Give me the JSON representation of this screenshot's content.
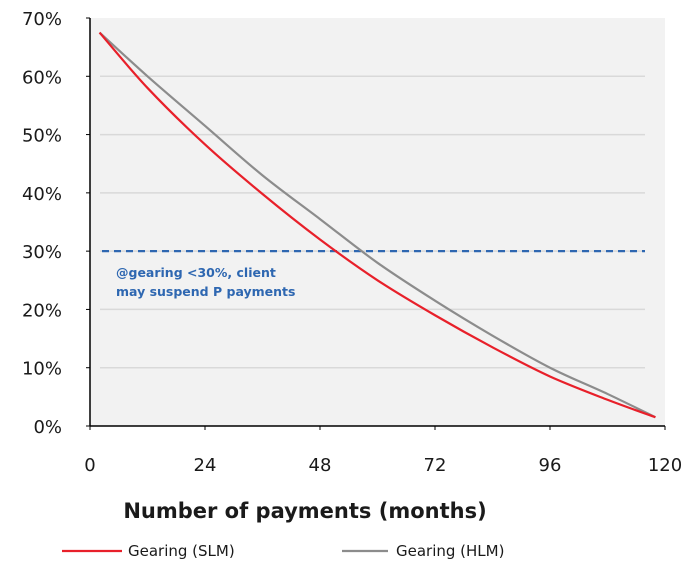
{
  "chart_data": {
    "type": "line",
    "title": "",
    "xlabel": "Number of payments (months)",
    "ylabel": "",
    "xlim": [
      0,
      120
    ],
    "ylim": [
      0,
      70
    ],
    "x_ticks": [
      0,
      24,
      48,
      72,
      96,
      120
    ],
    "x_tick_labels": [
      "0",
      "24",
      "48",
      "72",
      "96",
      "120"
    ],
    "y_ticks": [
      0,
      10,
      20,
      30,
      40,
      50,
      60,
      70
    ],
    "y_tick_labels": [
      "0%",
      "10%",
      "20%",
      "30%",
      "40%",
      "50%",
      "60%",
      "70%"
    ],
    "grid": "horizontal",
    "legend_position": "bottom",
    "colors": {
      "plot_background": "#f2f2f2",
      "grid": "#d9d9d9",
      "reference": "#2e67b1"
    },
    "series": [
      {
        "name": "Gearing (SLM)",
        "color": "#e8202a",
        "x": [
          2,
          12,
          24,
          36,
          48,
          60,
          72,
          84,
          96,
          108,
          118
        ],
        "y": [
          67.5,
          58,
          48.3,
          39.8,
          32,
          25,
          19,
          13.5,
          8.5,
          4.5,
          1.5
        ]
      },
      {
        "name": "Gearing (HLM)",
        "color": "#8c8c8c",
        "x": [
          2,
          12,
          24,
          36,
          48,
          60,
          72,
          84,
          96,
          108,
          118
        ],
        "y": [
          67.5,
          60,
          51.5,
          43,
          35.5,
          28,
          21.5,
          15.5,
          10,
          5.5,
          1.5
        ]
      }
    ],
    "reference_line": {
      "y": 30,
      "style": "dashed",
      "color": "#2e67b1",
      "label_lines": [
        "@gearing <30%, client",
        "may suspend P payments"
      ]
    }
  }
}
